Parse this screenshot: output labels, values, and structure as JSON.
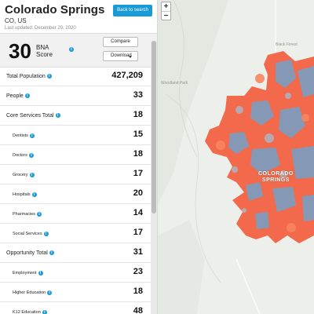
{
  "header": {
    "title": "Colorado Springs",
    "subtitle": "CO, US",
    "updated": "Last updated: December 20, 2020",
    "back_button": "Back to search"
  },
  "score": {
    "value": "30",
    "label_line1": "BNA",
    "label_line2": "Score",
    "compare_button": "Compare",
    "download_button": "Download"
  },
  "metrics": [
    {
      "label": "Total Population",
      "value": "427,209",
      "sub": false
    },
    {
      "label": "People",
      "value": "33",
      "sub": false
    },
    {
      "label": "Core Services Total",
      "value": "18",
      "sub": false
    },
    {
      "label": "Dentists",
      "value": "15",
      "sub": true
    },
    {
      "label": "Doctors",
      "value": "18",
      "sub": true
    },
    {
      "label": "Grocery",
      "value": "17",
      "sub": true
    },
    {
      "label": "Hospitals",
      "value": "20",
      "sub": true
    },
    {
      "label": "Pharmacies",
      "value": "14",
      "sub": true
    },
    {
      "label": "Social Services",
      "value": "17",
      "sub": true
    },
    {
      "label": "Opportunity Total",
      "value": "31",
      "sub": false
    },
    {
      "label": "Employment",
      "value": "23",
      "sub": true
    },
    {
      "label": "Higher Education",
      "value": "18",
      "sub": true
    },
    {
      "label": "K12 Education",
      "value": "48",
      "sub": true
    }
  ],
  "map": {
    "zoom_in": "+",
    "zoom_out": "−",
    "city_label_1": "COLORADO",
    "city_label_2": "SPRINGS",
    "place_label_1": "Woodland Park",
    "place_label_2": "Black Forest",
    "colors": {
      "low": "#f26a4b",
      "high": "#7a9fc2"
    }
  }
}
